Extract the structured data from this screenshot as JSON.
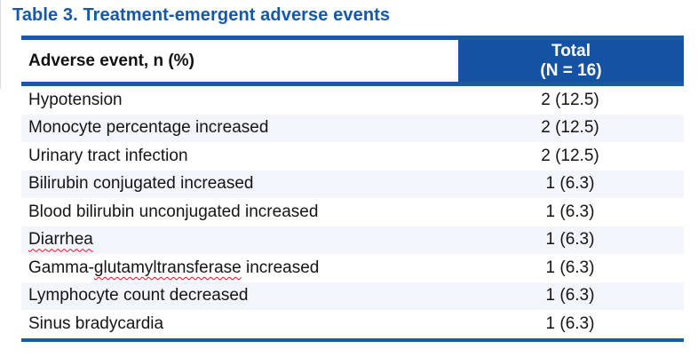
{
  "title": "Table 3. Treatment-emergent adverse events",
  "colors": {
    "accent_blue": "#1452a3",
    "line_blue": "#1c5aa0",
    "title_blue": "#1557a8",
    "stripe": "#f2f5fb",
    "spellcheck_red": "#e81123",
    "header_text_white": "#ffffff",
    "body_text": "#141414"
  },
  "table": {
    "header": {
      "col1": "Adverse event, n (%)",
      "col2_line1": "Total",
      "col2_line2": "(N = 16)"
    },
    "rows": [
      {
        "label_parts": [
          {
            "text": "Hypotension",
            "misspelled": false
          }
        ],
        "value": "2 (12.5)"
      },
      {
        "label_parts": [
          {
            "text": "Monocyte percentage increased",
            "misspelled": false
          }
        ],
        "value": "2 (12.5)"
      },
      {
        "label_parts": [
          {
            "text": "Urinary tract infection",
            "misspelled": false
          }
        ],
        "value": "2 (12.5)"
      },
      {
        "label_parts": [
          {
            "text": "Bilirubin conjugated increased",
            "misspelled": false
          }
        ],
        "value": "1 (6.3)"
      },
      {
        "label_parts": [
          {
            "text": "Blood bilirubin unconjugated increased",
            "misspelled": false
          }
        ],
        "value": "1 (6.3)"
      },
      {
        "label_parts": [
          {
            "text": "Diarrhea",
            "misspelled": true
          }
        ],
        "value": "1 (6.3)"
      },
      {
        "label_parts": [
          {
            "text": "Gamma-",
            "misspelled": false
          },
          {
            "text": "glutamyltransferase",
            "misspelled": true
          },
          {
            "text": " increased",
            "misspelled": false
          }
        ],
        "value": "1 (6.3)"
      },
      {
        "label_parts": [
          {
            "text": "Lymphocyte count decreased",
            "misspelled": false
          }
        ],
        "value": "1 (6.3)"
      },
      {
        "label_parts": [
          {
            "text": "Sinus bradycardia",
            "misspelled": false
          }
        ],
        "value": "1 (6.3)"
      }
    ]
  }
}
